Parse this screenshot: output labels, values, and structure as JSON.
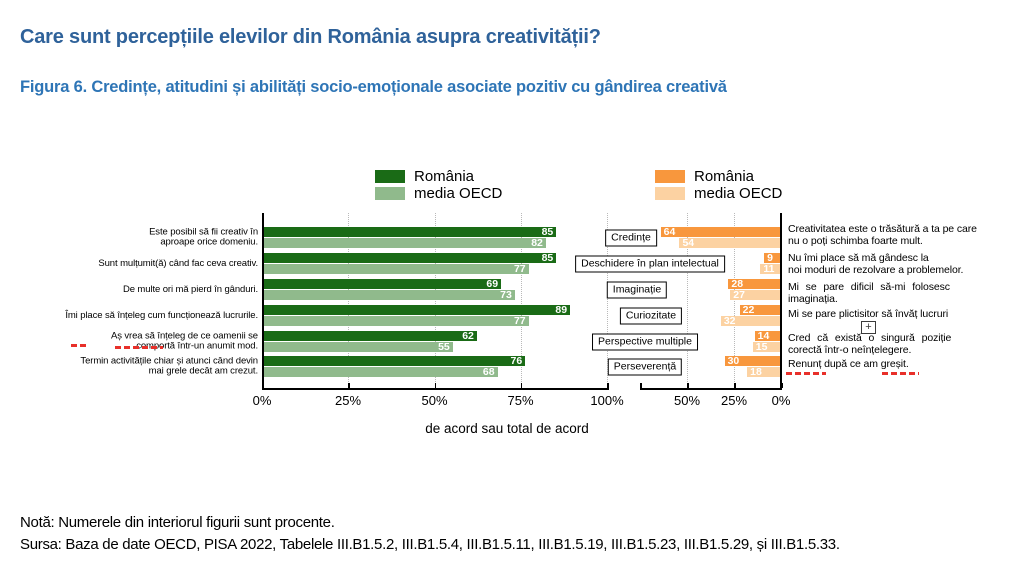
{
  "page": {
    "title": "Care sunt percepțiile elevilor din România asupra creativității?",
    "figure_caption": "Figura 6. Credințe, atitudini și abilități socio-emoționale asociate pozitiv cu gândirea creativă",
    "note": "Notă: Numerele din interiorul figurii sunt procente.",
    "source": "Sursa: Baza de date OECD, PISA 2022, Tabelele III.B1.5.2, III.B1.5.4, III.B1.5.11, III.B1.5.19, III.B1.5.23, III.B1.5.29, și III.B1.5.33."
  },
  "colors": {
    "title_blue": "#2f629a",
    "caption_blue": "#2e75b6",
    "romania_green": "#1a6b16",
    "oecd_green": "#90ba8c",
    "romania_orange": "#f8973d",
    "oecd_orange": "#fcd2a2",
    "spellcheck_red": "#e8302a",
    "grid_gray": "#b9b9b9"
  },
  "legends": {
    "left": [
      {
        "label": "România",
        "color": "#1a6b16"
      },
      {
        "label": "media OECD",
        "color": "#90ba8c"
      }
    ],
    "right": [
      {
        "label": "România",
        "color": "#f8973d"
      },
      {
        "label": "media OECD",
        "color": "#fcd2a2"
      }
    ]
  },
  "chart_data": {
    "type": "bar",
    "layout": "paired horizontal bar panels (agree panel left-to-right, disagree panel right-to-left)",
    "title": "Figura 6. Credințe, atitudini și abilități socio-emoționale asociate pozitiv cu gândirea creativă",
    "xlabel": "de acord sau total de acord",
    "units": "percent",
    "legend": [
      "România",
      "media OECD"
    ],
    "legend_position": "top",
    "grid": "dotted vertical gridlines",
    "left_panel": {
      "xlim": [
        0,
        100
      ],
      "axis_ticks": [
        "0%",
        "25%",
        "50%",
        "75%",
        "100%"
      ],
      "direction": "left-to-right"
    },
    "right_panel": {
      "xlim": [
        0,
        75
      ],
      "axis_ticks": [
        "50%",
        "25%",
        "0%"
      ],
      "direction": "right-to-left"
    },
    "rows": [
      {
        "left_statement_lines": [
          "Este posibil să fii creativ în",
          "aproape orice domeniu."
        ],
        "left": {
          "romania": 85,
          "oecd": 82
        },
        "category": "Credințe",
        "right": {
          "romania": 64,
          "oecd": 54
        },
        "right_statement_lines": [
          "Creativitatea este o trăsătură a ta pe care",
          "nu o poți schimba foarte mult."
        ],
        "right_justify": false
      },
      {
        "left_statement_lines": [
          "Sunt mulțumit(ă) când fac ceva creativ."
        ],
        "left": {
          "romania": 85,
          "oecd": 77
        },
        "category": "Deschidere în plan intelectual",
        "right": {
          "romania": 9,
          "oecd": 11
        },
        "right_statement_lines": [
          "Nu îmi place să mă gândesc la",
          "noi moduri de rezolvare a problemelor."
        ],
        "right_justify": false
      },
      {
        "left_statement_lines": [
          "De multe ori mă pierd în gânduri."
        ],
        "left": {
          "romania": 69,
          "oecd": 73
        },
        "category": "Imaginație",
        "right": {
          "romania": 28,
          "oecd": 27
        },
        "right_statement_lines": [
          "Mi se pare dificil să-mi folosesc",
          "imaginația."
        ],
        "right_justify": true
      },
      {
        "left_statement_lines": [
          "Îmi place să înțeleg cum funcționează lucrurile."
        ],
        "left": {
          "romania": 89,
          "oecd": 77
        },
        "category": "Curiozitate",
        "right": {
          "romania": 22,
          "oecd": 32
        },
        "right_statement_lines": [
          "Mi se pare plictisitor să învăț lucruri"
        ],
        "right_justify": false
      },
      {
        "left_statement_lines": [
          "Aș vrea să înțeleg de ce oamenii se",
          "comportă într-un anumit mod."
        ],
        "left": {
          "romania": 62,
          "oecd": 55
        },
        "category": "Perspective multiple",
        "right": {
          "romania": 14,
          "oecd": 15
        },
        "right_statement_lines": [
          "Cred că există o singură poziție",
          "corectă într-o neînțelegere."
        ],
        "right_justify": true
      },
      {
        "left_statement_lines": [
          "Termin activitățile chiar și atunci când devin",
          "mai grele decât am crezut."
        ],
        "left": {
          "romania": 76,
          "oecd": 68
        },
        "category": "Perseverență",
        "right": {
          "romania": 30,
          "oecd": 18
        },
        "right_statement_lines": [
          "Renunț după ce am greșit."
        ],
        "right_justify": false
      }
    ]
  },
  "widgets": {
    "expand_plus_label": "+"
  }
}
